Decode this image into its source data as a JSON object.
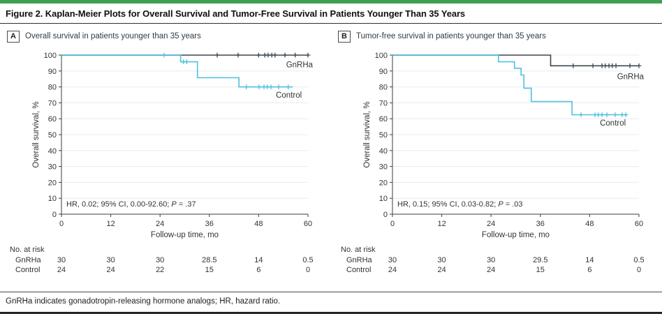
{
  "figure": {
    "title": "Figure 2. Kaplan-Meier Plots for Overall Survival and Tumor-Free Survival in Patients Younger Than 35 Years",
    "footnote": "GnRHa indicates gonadotropin-releasing hormone analogs; HR, hazard ratio."
  },
  "colors": {
    "accent_green": "#3f9f4f",
    "gnrha": "#3d474e",
    "control": "#4fc0e0",
    "grid": "#e7ebee",
    "axis": "#3c3c3c",
    "label_text": "#36424a"
  },
  "chart_data": [
    {
      "type": "km_step",
      "panel": "A",
      "panel_title": "Overall survival in patients younger than 35 years",
      "xlabel": "Follow-up time, mo",
      "ylabel": "Overall survival, %",
      "xlim": [
        0,
        60
      ],
      "xticks": [
        0,
        12,
        24,
        36,
        48,
        60
      ],
      "ylim": [
        0,
        100
      ],
      "yticks": [
        0,
        10,
        20,
        30,
        40,
        50,
        60,
        70,
        80,
        90,
        100
      ],
      "grid": true,
      "annotation": {
        "prefix": "HR, 0.02; 95% CI, 0.00-92.60; ",
        "p_label": "P",
        "p_value": " = .37"
      },
      "series": [
        {
          "name": "GnRHa",
          "color": "gnrha",
          "steps": [
            [
              0,
              100
            ]
          ],
          "end": 60,
          "censors": [
            [
              37.9,
              100
            ],
            [
              43,
              100
            ],
            [
              48,
              100
            ],
            [
              49.5,
              100
            ],
            [
              50.3,
              100
            ],
            [
              51.2,
              100
            ],
            [
              52,
              100
            ],
            [
              54.4,
              100
            ],
            [
              56.9,
              100
            ],
            [
              60,
              100
            ]
          ],
          "label_pos": [
            61.2,
            92.3
          ]
        },
        {
          "name": "Control",
          "color": "control",
          "steps": [
            [
              0,
              100
            ],
            [
              29,
              95.8
            ],
            [
              33.1,
              85.8
            ],
            [
              43.2,
              80
            ]
          ],
          "end": 56.3,
          "censors": [
            [
              25,
              100
            ],
            [
              29.7,
              95.8
            ],
            [
              30.5,
              95.8
            ],
            [
              45,
              80
            ],
            [
              48.1,
              80
            ],
            [
              49.3,
              80
            ],
            [
              50.1,
              80
            ],
            [
              51,
              80
            ],
            [
              52.9,
              80
            ],
            [
              55.2,
              80
            ]
          ],
          "label_pos": [
            58.5,
            73.2
          ]
        }
      ],
      "risk": {
        "title": "No. at risk",
        "rows": [
          {
            "label": "GnRHa",
            "values": [
              "30",
              "30",
              "30",
              "28.5",
              "14",
              "0.5"
            ]
          },
          {
            "label": "Control",
            "values": [
              "24",
              "24",
              "22",
              "15",
              "6",
              "0"
            ]
          }
        ]
      }
    },
    {
      "type": "km_step",
      "panel": "B",
      "panel_title": "Tumor-free survival in patients younger than 35 years",
      "xlabel": "Follow-up time, mo",
      "ylabel": "Overall survival, %",
      "xlim": [
        0,
        60
      ],
      "xticks": [
        0,
        12,
        24,
        36,
        48,
        60
      ],
      "ylim": [
        0,
        100
      ],
      "yticks": [
        0,
        10,
        20,
        30,
        40,
        50,
        60,
        70,
        80,
        90,
        100
      ],
      "grid": true,
      "annotation": {
        "prefix": "HR, 0.15; 95% CI, 0.03-0.82; ",
        "p_label": "P",
        "p_value": " = .03"
      },
      "series": [
        {
          "name": "GnRHa",
          "color": "gnrha",
          "steps": [
            [
              0,
              100
            ],
            [
              38.5,
              93.3
            ]
          ],
          "end": 60,
          "censors": [
            [
              44,
              93.3
            ],
            [
              48.8,
              93.3
            ],
            [
              51,
              93.3
            ],
            [
              51.8,
              93.3
            ],
            [
              52.7,
              93.3
            ],
            [
              53.5,
              93.3
            ],
            [
              54.4,
              93.3
            ],
            [
              57.8,
              93.3
            ],
            [
              60,
              93.3
            ]
          ],
          "label_pos": [
            61.2,
            84.8
          ]
        },
        {
          "name": "Control",
          "color": "control",
          "steps": [
            [
              0,
              100
            ],
            [
              25.8,
              95.8
            ],
            [
              29.7,
              91.7
            ],
            [
              31.3,
              87.5
            ],
            [
              32,
              79.2
            ],
            [
              33.8,
              70.8
            ],
            [
              43.7,
              62.5
            ]
          ],
          "end": 57,
          "censors": [
            [
              45.9,
              62.5
            ],
            [
              49.3,
              62.5
            ],
            [
              50.1,
              62.5
            ],
            [
              51,
              62.5
            ],
            [
              52.2,
              62.5
            ],
            [
              54.2,
              62.5
            ],
            [
              55.9,
              62.5
            ],
            [
              56.8,
              62.5
            ]
          ],
          "label_pos": [
            56.8,
            55.8
          ]
        }
      ],
      "risk": {
        "title": "No. at risk",
        "rows": [
          {
            "label": "GnRHa",
            "values": [
              "30",
              "30",
              "30",
              "29.5",
              "14",
              "0.5"
            ]
          },
          {
            "label": "Control",
            "values": [
              "24",
              "24",
              "24",
              "15",
              "6",
              "0"
            ]
          }
        ]
      }
    }
  ]
}
